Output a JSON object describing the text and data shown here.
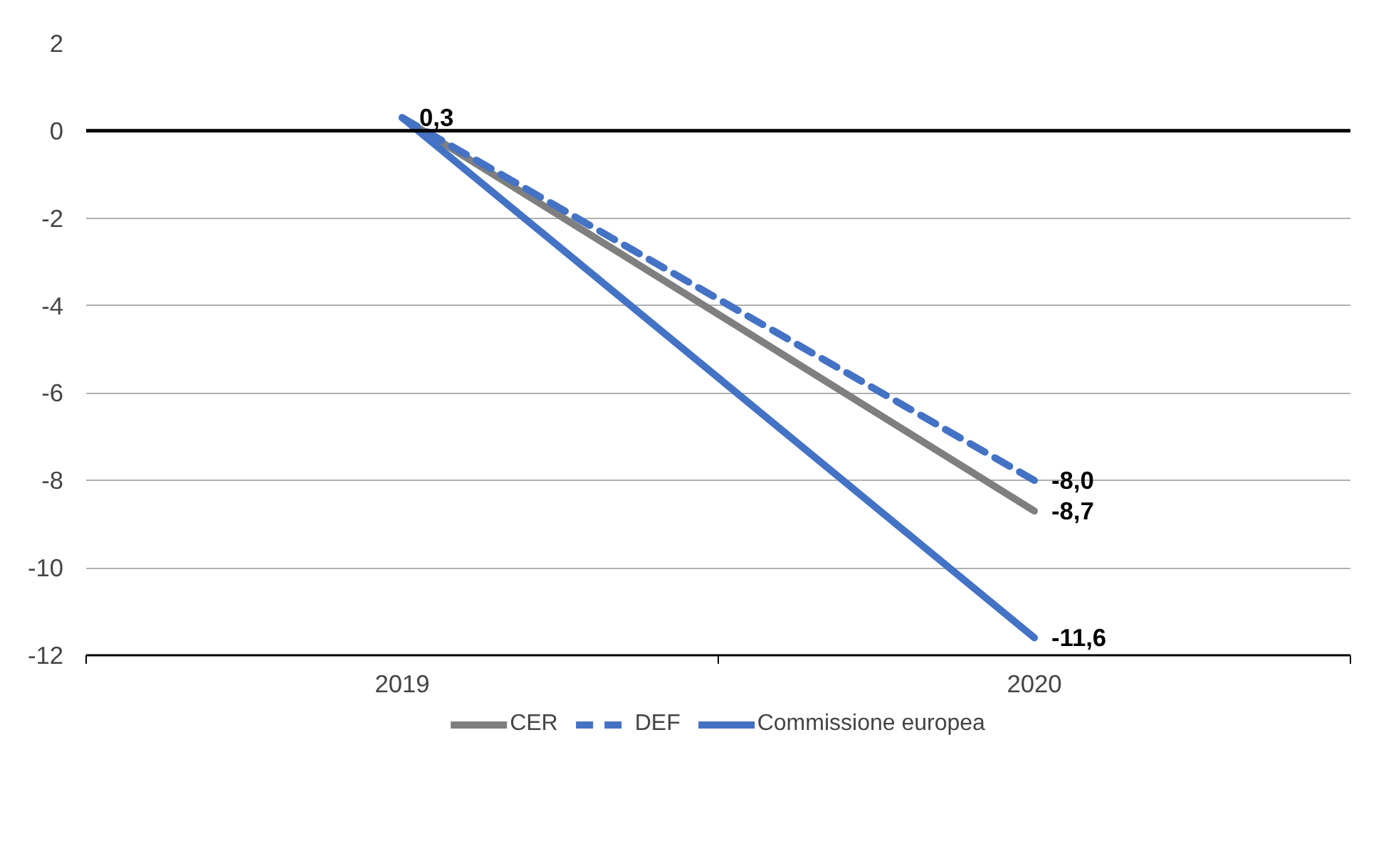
{
  "chart_data": {
    "type": "line",
    "categories": [
      "2019",
      "2020"
    ],
    "series": [
      {
        "name": "CER",
        "color": "#7f7f7f",
        "line_style": "solid",
        "values": [
          0.3,
          -8.7
        ],
        "value_labels": [
          null,
          "-8,7"
        ]
      },
      {
        "name": "DEF",
        "color": "#4472c4",
        "line_style": "dashed",
        "values": [
          0.3,
          -8.0
        ],
        "value_labels": [
          null,
          "-8,0"
        ]
      },
      {
        "name": "Commissione europea",
        "color": "#4472c4",
        "line_style": "solid",
        "values": [
          0.3,
          -11.6
        ],
        "value_labels": [
          "0,3",
          "-11,6"
        ]
      }
    ],
    "ylim": [
      -12,
      2
    ],
    "yticks": [
      -12,
      -10,
      -8,
      -6,
      -4,
      -2,
      0,
      2
    ],
    "grid": "y",
    "legend": "bottom",
    "marker": "none",
    "ref_lines": [
      {
        "axis": "y",
        "value": 0,
        "color": "#000000"
      }
    ]
  }
}
